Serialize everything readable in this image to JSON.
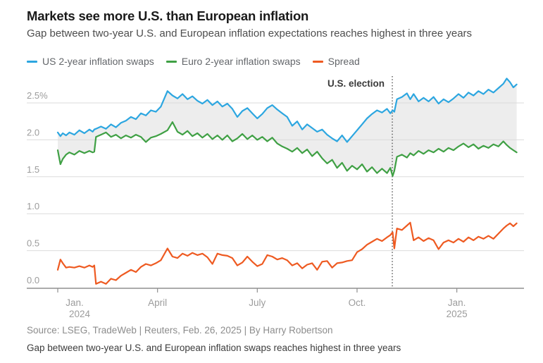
{
  "header": {
    "title": "Markets see more U.S. than European inflation",
    "subtitle": "Gap between two-year U.S. and European inflation expectations reaches highest in three years"
  },
  "annotation": {
    "us_election": "U.S. election"
  },
  "footer": {
    "source": "Source: LSEG, TradeWeb | Reuters, Feb. 26, 2025 | By Harry Robertson",
    "caption": "Gap between two-year U.S. and European inflation swaps reaches highest in three years"
  },
  "colors": {
    "us": "#2ca6e0",
    "euro": "#3fa044",
    "spread": "#ee5a21",
    "grid": "#dbdbdb",
    "axis": "#8f8f8f",
    "band_fill": "#ededed",
    "tick_label": "#9c9c9c",
    "election_line": "#555555"
  },
  "chart_data": {
    "type": "line",
    "title": "Markets see more U.S. than European inflation",
    "x_unit": "months since Jan 1, 2024",
    "x_range": [
      0,
      13.8
    ],
    "y_range": [
      0,
      2.9
    ],
    "grid": true,
    "legend_position": "top",
    "y_ticks": [
      {
        "value": 2.5,
        "label": "2.5%"
      },
      {
        "value": 2.0,
        "label": "2.0"
      },
      {
        "value": 1.5,
        "label": "1.5"
      },
      {
        "value": 1.0,
        "label": "1.0"
      },
      {
        "value": 0.5,
        "label": "0.5"
      },
      {
        "value": 0.0,
        "label": "0.0"
      }
    ],
    "x_ticks": [
      {
        "m": 0,
        "label": "Jan.",
        "sublabel": "2024"
      },
      {
        "m": 3,
        "label": "April",
        "sublabel": ""
      },
      {
        "m": 6,
        "label": "July",
        "sublabel": ""
      },
      {
        "m": 9,
        "label": "Oct.",
        "sublabel": ""
      },
      {
        "m": 12,
        "label": "Jan.",
        "sublabel": "2025"
      }
    ],
    "election_month": 10.06,
    "band_between": [
      0,
      1
    ],
    "x": [
      0,
      0.08,
      0.15,
      0.25,
      0.35,
      0.5,
      0.65,
      0.8,
      0.95,
      1.05,
      1.1,
      1.15,
      1.3,
      1.45,
      1.6,
      1.75,
      1.9,
      2.05,
      2.2,
      2.35,
      2.5,
      2.65,
      2.8,
      2.95,
      3.1,
      3.3,
      3.45,
      3.6,
      3.75,
      3.9,
      4.05,
      4.2,
      4.35,
      4.5,
      4.65,
      4.8,
      4.95,
      5.1,
      5.25,
      5.4,
      5.55,
      5.7,
      5.85,
      6.0,
      6.15,
      6.3,
      6.45,
      6.6,
      6.75,
      6.9,
      7.05,
      7.2,
      7.35,
      7.5,
      7.65,
      7.8,
      7.95,
      8.1,
      8.25,
      8.4,
      8.55,
      8.7,
      8.85,
      9.0,
      9.15,
      9.3,
      9.45,
      9.6,
      9.75,
      9.9,
      10.0,
      10.07,
      10.12,
      10.2,
      10.35,
      10.5,
      10.6,
      10.7,
      10.85,
      11.0,
      11.15,
      11.3,
      11.45,
      11.6,
      11.75,
      11.9,
      12.05,
      12.2,
      12.35,
      12.5,
      12.65,
      12.8,
      12.95,
      13.1,
      13.25,
      13.4,
      13.5,
      13.6,
      13.7,
      13.8
    ],
    "series": [
      {
        "name": "US 2-year inflation swaps",
        "color_key": "us",
        "values": [
          2.1,
          2.05,
          2.09,
          2.06,
          2.1,
          2.07,
          2.13,
          2.09,
          2.14,
          2.11,
          2.14,
          2.15,
          2.18,
          2.15,
          2.21,
          2.17,
          2.23,
          2.26,
          2.31,
          2.28,
          2.36,
          2.33,
          2.4,
          2.38,
          2.45,
          2.66,
          2.6,
          2.56,
          2.62,
          2.55,
          2.59,
          2.53,
          2.49,
          2.54,
          2.47,
          2.52,
          2.45,
          2.49,
          2.42,
          2.31,
          2.39,
          2.43,
          2.36,
          2.29,
          2.35,
          2.43,
          2.47,
          2.41,
          2.36,
          2.31,
          2.19,
          2.25,
          2.14,
          2.21,
          2.16,
          2.11,
          2.14,
          2.07,
          2.02,
          1.98,
          2.06,
          1.97,
          2.05,
          2.13,
          2.21,
          2.29,
          2.35,
          2.4,
          2.37,
          2.42,
          2.36,
          2.4,
          2.38,
          2.55,
          2.58,
          2.63,
          2.55,
          2.62,
          2.52,
          2.57,
          2.52,
          2.58,
          2.49,
          2.55,
          2.51,
          2.56,
          2.62,
          2.57,
          2.64,
          2.6,
          2.66,
          2.62,
          2.68,
          2.64,
          2.7,
          2.76,
          2.83,
          2.78,
          2.71,
          2.75
        ]
      },
      {
        "name": "Euro 2-year inflation swaps",
        "color_key": "euro",
        "values": [
          1.86,
          1.67,
          1.74,
          1.8,
          1.83,
          1.8,
          1.85,
          1.82,
          1.85,
          1.83,
          1.84,
          2.04,
          2.07,
          2.1,
          2.04,
          2.07,
          2.02,
          2.06,
          2.03,
          2.07,
          2.04,
          1.97,
          2.03,
          2.05,
          2.08,
          2.13,
          2.24,
          2.11,
          2.07,
          2.12,
          2.05,
          2.09,
          2.03,
          2.08,
          2.01,
          2.06,
          2.0,
          2.06,
          1.98,
          2.02,
          2.08,
          2.01,
          2.06,
          2.0,
          2.04,
          1.98,
          2.03,
          1.95,
          1.91,
          1.88,
          1.84,
          1.89,
          1.82,
          1.87,
          1.78,
          1.84,
          1.75,
          1.68,
          1.73,
          1.62,
          1.69,
          1.58,
          1.65,
          1.6,
          1.67,
          1.57,
          1.63,
          1.55,
          1.61,
          1.55,
          1.62,
          1.51,
          1.58,
          1.77,
          1.8,
          1.76,
          1.82,
          1.79,
          1.85,
          1.81,
          1.86,
          1.83,
          1.88,
          1.84,
          1.89,
          1.86,
          1.91,
          1.95,
          1.9,
          1.94,
          1.88,
          1.92,
          1.89,
          1.94,
          1.91,
          1.98,
          1.93,
          1.89,
          1.86,
          1.83
        ]
      },
      {
        "name": "Spread",
        "color_key": "spread",
        "values": [
          0.24,
          0.38,
          0.33,
          0.27,
          0.28,
          0.27,
          0.29,
          0.27,
          0.3,
          0.28,
          0.3,
          0.05,
          0.08,
          0.05,
          0.12,
          0.1,
          0.16,
          0.2,
          0.24,
          0.21,
          0.28,
          0.32,
          0.3,
          0.33,
          0.37,
          0.53,
          0.42,
          0.4,
          0.46,
          0.43,
          0.47,
          0.44,
          0.46,
          0.41,
          0.32,
          0.46,
          0.44,
          0.43,
          0.4,
          0.3,
          0.34,
          0.42,
          0.35,
          0.29,
          0.32,
          0.44,
          0.42,
          0.38,
          0.4,
          0.37,
          0.3,
          0.33,
          0.26,
          0.31,
          0.33,
          0.24,
          0.35,
          0.36,
          0.27,
          0.33,
          0.34,
          0.36,
          0.37,
          0.48,
          0.52,
          0.58,
          0.62,
          0.66,
          0.63,
          0.68,
          0.71,
          0.75,
          0.53,
          0.8,
          0.78,
          0.84,
          0.88,
          0.64,
          0.68,
          0.63,
          0.67,
          0.64,
          0.52,
          0.61,
          0.64,
          0.61,
          0.66,
          0.62,
          0.68,
          0.64,
          0.69,
          0.66,
          0.7,
          0.66,
          0.73,
          0.8,
          0.84,
          0.87,
          0.83,
          0.87
        ]
      }
    ]
  }
}
